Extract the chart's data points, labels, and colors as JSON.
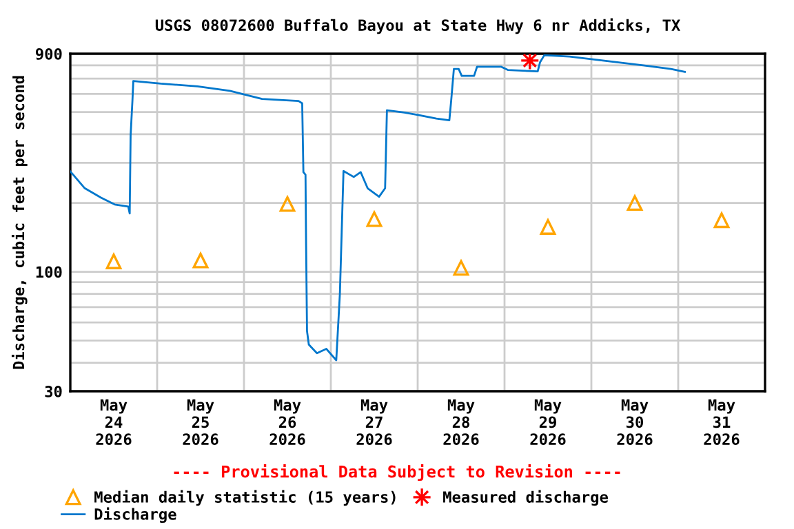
{
  "chart_data": {
    "type": "line",
    "title": "USGS 08072600 Buffalo Bayou at State Hwy 6 nr Addicks, TX",
    "ylabel": "Discharge, cubic feet per second",
    "annotations": [
      "---- Provisional Data Subject to Revision ----"
    ],
    "log": "y",
    "grid": true,
    "legend": "bottom",
    "xlim": [
      "2026-05-24T00:00",
      "2026-06-01T00:00"
    ],
    "xticks": [
      {
        "value": "2026-05-24T00:00",
        "label": null
      },
      {
        "value": "2026-05-24T12:00",
        "label": "May\n24\n2026"
      },
      {
        "value": "2026-05-25T00:00",
        "label": null
      },
      {
        "value": "2026-05-25T12:00",
        "label": "May\n25\n2026"
      },
      {
        "value": "2026-05-26T00:00",
        "label": null
      },
      {
        "value": "2026-05-26T12:00",
        "label": "May\n26\n2026"
      },
      {
        "value": "2026-05-27T00:00",
        "label": null
      },
      {
        "value": "2026-05-27T12:00",
        "label": "May\n27\n2026"
      },
      {
        "value": "2026-05-28T00:00",
        "label": null
      },
      {
        "value": "2026-05-28T12:00",
        "label": "May\n28\n2026"
      },
      {
        "value": "2026-05-29T00:00",
        "label": null
      },
      {
        "value": "2026-05-29T12:00",
        "label": "May\n29\n2026"
      },
      {
        "value": "2026-05-30T00:00",
        "label": null
      },
      {
        "value": "2026-05-30T12:00",
        "label": "May\n30\n2026"
      },
      {
        "value": "2026-05-31T00:00",
        "label": null
      },
      {
        "value": "2026-05-31T12:00",
        "label": "May\n31\n2026"
      },
      {
        "value": "2026-06-01T00:00",
        "label": null
      }
    ],
    "ylim": [
      30,
      900
    ],
    "yticks": [
      30,
      {
        "value": 40,
        "label": null
      },
      {
        "value": 50,
        "label": null
      },
      {
        "value": 60,
        "label": null
      },
      {
        "value": 70,
        "label": null
      },
      {
        "value": 80,
        "label": null
      },
      {
        "value": 90,
        "label": null
      },
      100,
      {
        "value": 200,
        "label": null
      },
      {
        "value": 300,
        "label": null
      },
      {
        "value": 400,
        "label": null
      },
      {
        "value": 500,
        "label": null
      },
      {
        "value": 600,
        "label": null
      },
      {
        "value": 700,
        "label": null
      },
      {
        "value": 800,
        "label": null
      },
      900
    ],
    "series": [
      {
        "name": "Median daily statistic (15 years)",
        "type": "scatter",
        "marker": "triangle",
        "color": "#ffa500",
        "x": [
          "2026-05-24T12:00",
          "2026-05-25T12:00",
          "2026-05-26T12:00",
          "2026-05-27T12:00",
          "2026-05-28T12:00",
          "2026-05-29T12:00",
          "2026-05-30T12:00",
          "2026-05-31T12:00"
        ],
        "values": [
          111,
          112,
          198,
          170,
          104,
          157,
          200,
          168
        ]
      },
      {
        "name": "Discharge",
        "color": "#0077cc",
        "x": [
          "2026-05-24T00:00",
          "2026-05-24T04:00",
          "2026-05-24T08:30",
          "2026-05-24T12:15",
          "2026-05-24T16:00",
          "2026-05-24T16:25",
          "2026-05-24T16:40",
          "2026-05-24T17:10",
          "2026-05-24T17:25",
          "2026-05-25T01:00",
          "2026-05-25T11:10",
          "2026-05-25T20:05",
          "2026-05-26T05:00",
          "2026-05-26T15:05",
          "2026-05-26T16:05",
          "2026-05-26T16:25",
          "2026-05-26T17:00",
          "2026-05-26T17:10",
          "2026-05-26T17:25",
          "2026-05-26T17:55",
          "2026-05-26T20:10",
          "2026-05-26T22:45",
          "2026-05-27T01:30",
          "2026-05-27T02:30",
          "2026-05-27T03:00",
          "2026-05-27T03:30",
          "2026-05-27T06:20",
          "2026-05-27T08:15",
          "2026-05-27T10:10",
          "2026-05-27T13:20",
          "2026-05-27T15:00",
          "2026-05-27T15:30",
          "2026-05-27T20:20",
          "2026-05-28T00:05",
          "2026-05-28T05:10",
          "2026-05-28T08:45",
          "2026-05-28T09:15",
          "2026-05-28T10:00",
          "2026-05-28T11:20",
          "2026-05-28T12:10",
          "2026-05-28T15:35",
          "2026-05-28T16:25",
          "2026-05-28T23:00",
          "2026-05-29T00:55",
          "2026-05-29T09:10",
          "2026-05-29T09:50",
          "2026-05-29T11:00",
          "2026-05-29T18:00",
          "2026-05-30T06:45",
          "2026-05-30T14:20",
          "2026-05-30T22:00",
          "2026-05-31T01:50"
        ],
        "values": [
          275,
          232,
          211,
          197,
          193,
          180,
          395,
          559,
          684,
          666,
          648,
          619,
          571,
          559,
          546,
          273,
          266,
          130,
          55,
          48,
          44,
          46,
          41,
          80,
          149,
          276,
          260,
          273,
          232,
          213,
          232,
          509,
          498,
          486,
          468,
          460,
          559,
          772,
          772,
          720,
          720,
          790,
          790,
          764,
          753,
          827,
          887,
          875,
          827,
          801,
          772,
          750
        ]
      },
      {
        "name": "Measured discharge",
        "type": "scatter",
        "marker": "star",
        "color": "#ff0000",
        "x": [
          "2026-05-29T07:00"
        ],
        "values": [
          840
        ]
      }
    ]
  }
}
